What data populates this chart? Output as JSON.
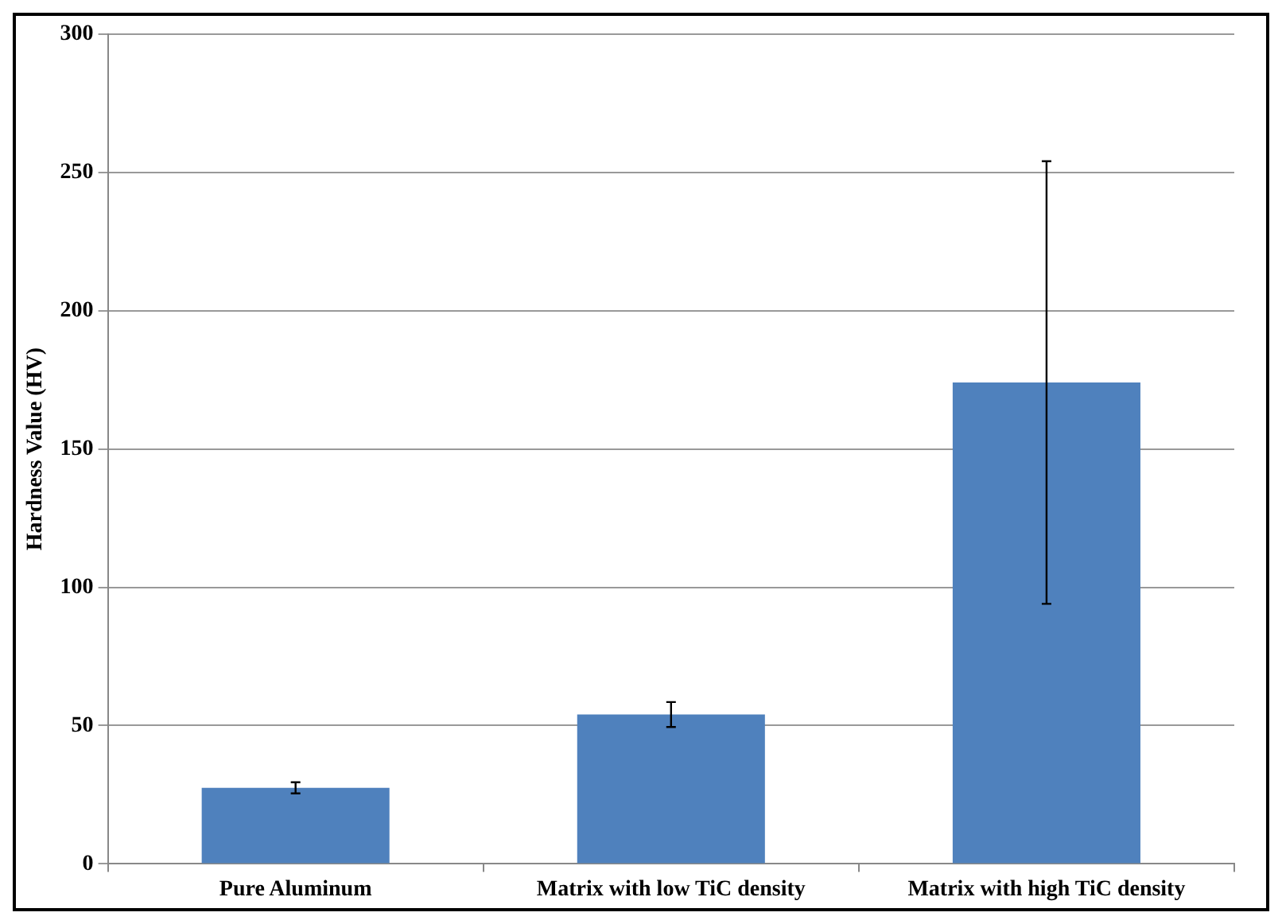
{
  "chart_data": {
    "type": "bar",
    "ylabel": "Hardness Value (HV)",
    "categories": [
      "Pure Aluminum",
      "Matrix with low TiC density",
      "Matrix with high TiC density"
    ],
    "values": [
      27.5,
      54,
      174
    ],
    "errors": [
      2,
      4.5,
      80
    ],
    "color": "#4f81bd",
    "ylim": [
      0,
      300
    ],
    "yticks": [
      0,
      50,
      100,
      150,
      200,
      250,
      300
    ],
    "grid": "y"
  }
}
